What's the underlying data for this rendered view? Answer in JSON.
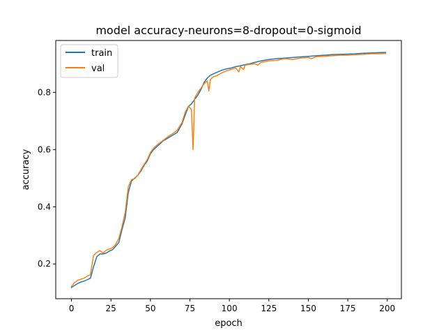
{
  "chart_data": {
    "type": "line",
    "title": "model accuracy-neurons=8-dropout=0-sigmoid",
    "xlabel": "epoch",
    "ylabel": "accuracy",
    "xlim": [
      -9.95,
      208.95
    ],
    "ylim": [
      0.0785,
      0.9815
    ],
    "xticks": [
      0,
      25,
      50,
      75,
      100,
      125,
      150,
      175,
      200
    ],
    "yticks": [
      0.2,
      0.4,
      0.6,
      0.8
    ],
    "xtick_labels": [
      "0",
      "25",
      "50",
      "75",
      "100",
      "125",
      "150",
      "175",
      "200"
    ],
    "ytick_labels": [
      "0.2",
      "0.4",
      "0.6",
      "0.8"
    ],
    "grid": false,
    "legend": "upper-left",
    "series": [
      {
        "name": "train",
        "color": "#1f77b4",
        "x": [
          0,
          2,
          4,
          6,
          8,
          10,
          12,
          14,
          16,
          18,
          20,
          22,
          24,
          26,
          28,
          30,
          32,
          34,
          36,
          38,
          40,
          42,
          44,
          46,
          48,
          50,
          52,
          55,
          58,
          61,
          64,
          67,
          70,
          72,
          74,
          76,
          78,
          80,
          82,
          84,
          86,
          88,
          90,
          92,
          95,
          98,
          101,
          104,
          107,
          110,
          113,
          116,
          120,
          125,
          130,
          135,
          140,
          145,
          150,
          155,
          160,
          165,
          170,
          175,
          180,
          185,
          190,
          195,
          199
        ],
        "values": [
          0.118,
          0.125,
          0.132,
          0.137,
          0.14,
          0.145,
          0.15,
          0.19,
          0.225,
          0.235,
          0.235,
          0.238,
          0.245,
          0.25,
          0.262,
          0.275,
          0.32,
          0.36,
          0.45,
          0.49,
          0.5,
          0.51,
          0.525,
          0.545,
          0.56,
          0.585,
          0.6,
          0.615,
          0.63,
          0.64,
          0.65,
          0.66,
          0.69,
          0.72,
          0.75,
          0.76,
          0.775,
          0.79,
          0.81,
          0.835,
          0.85,
          0.86,
          0.865,
          0.87,
          0.877,
          0.882,
          0.885,
          0.89,
          0.893,
          0.897,
          0.9,
          0.905,
          0.91,
          0.915,
          0.918,
          0.92,
          0.922,
          0.924,
          0.926,
          0.928,
          0.93,
          0.932,
          0.933,
          0.934,
          0.935,
          0.937,
          0.938,
          0.939,
          0.94
        ]
      },
      {
        "name": "val",
        "color": "#ff7f0e",
        "x": [
          0,
          2,
          4,
          6,
          8,
          10,
          12,
          14,
          16,
          18,
          20,
          22,
          24,
          26,
          28,
          30,
          32,
          34,
          36,
          38,
          40,
          42,
          44,
          46,
          48,
          50,
          52,
          55,
          58,
          61,
          64,
          67,
          70,
          72,
          74,
          76,
          77,
          78,
          80,
          82,
          84,
          86,
          87,
          88,
          90,
          92,
          95,
          98,
          101,
          104,
          106,
          107,
          109,
          110,
          113,
          116,
          118,
          120,
          125,
          130,
          135,
          140,
          145,
          150,
          152,
          155,
          160,
          165,
          170,
          175,
          180,
          185,
          190,
          195,
          199
        ],
        "values": [
          0.122,
          0.135,
          0.143,
          0.147,
          0.15,
          0.158,
          0.162,
          0.23,
          0.24,
          0.247,
          0.238,
          0.248,
          0.252,
          0.257,
          0.268,
          0.29,
          0.33,
          0.38,
          0.47,
          0.495,
          0.498,
          0.51,
          0.53,
          0.548,
          0.565,
          0.59,
          0.605,
          0.62,
          0.632,
          0.645,
          0.655,
          0.668,
          0.695,
          0.73,
          0.752,
          0.74,
          0.6,
          0.78,
          0.8,
          0.815,
          0.83,
          0.84,
          0.805,
          0.845,
          0.855,
          0.858,
          0.868,
          0.875,
          0.88,
          0.885,
          0.872,
          0.89,
          0.88,
          0.895,
          0.898,
          0.9,
          0.895,
          0.905,
          0.91,
          0.912,
          0.918,
          0.915,
          0.92,
          0.922,
          0.918,
          0.925,
          0.926,
          0.928,
          0.93,
          0.93,
          0.932,
          0.933,
          0.935,
          0.935,
          0.936
        ]
      }
    ]
  }
}
